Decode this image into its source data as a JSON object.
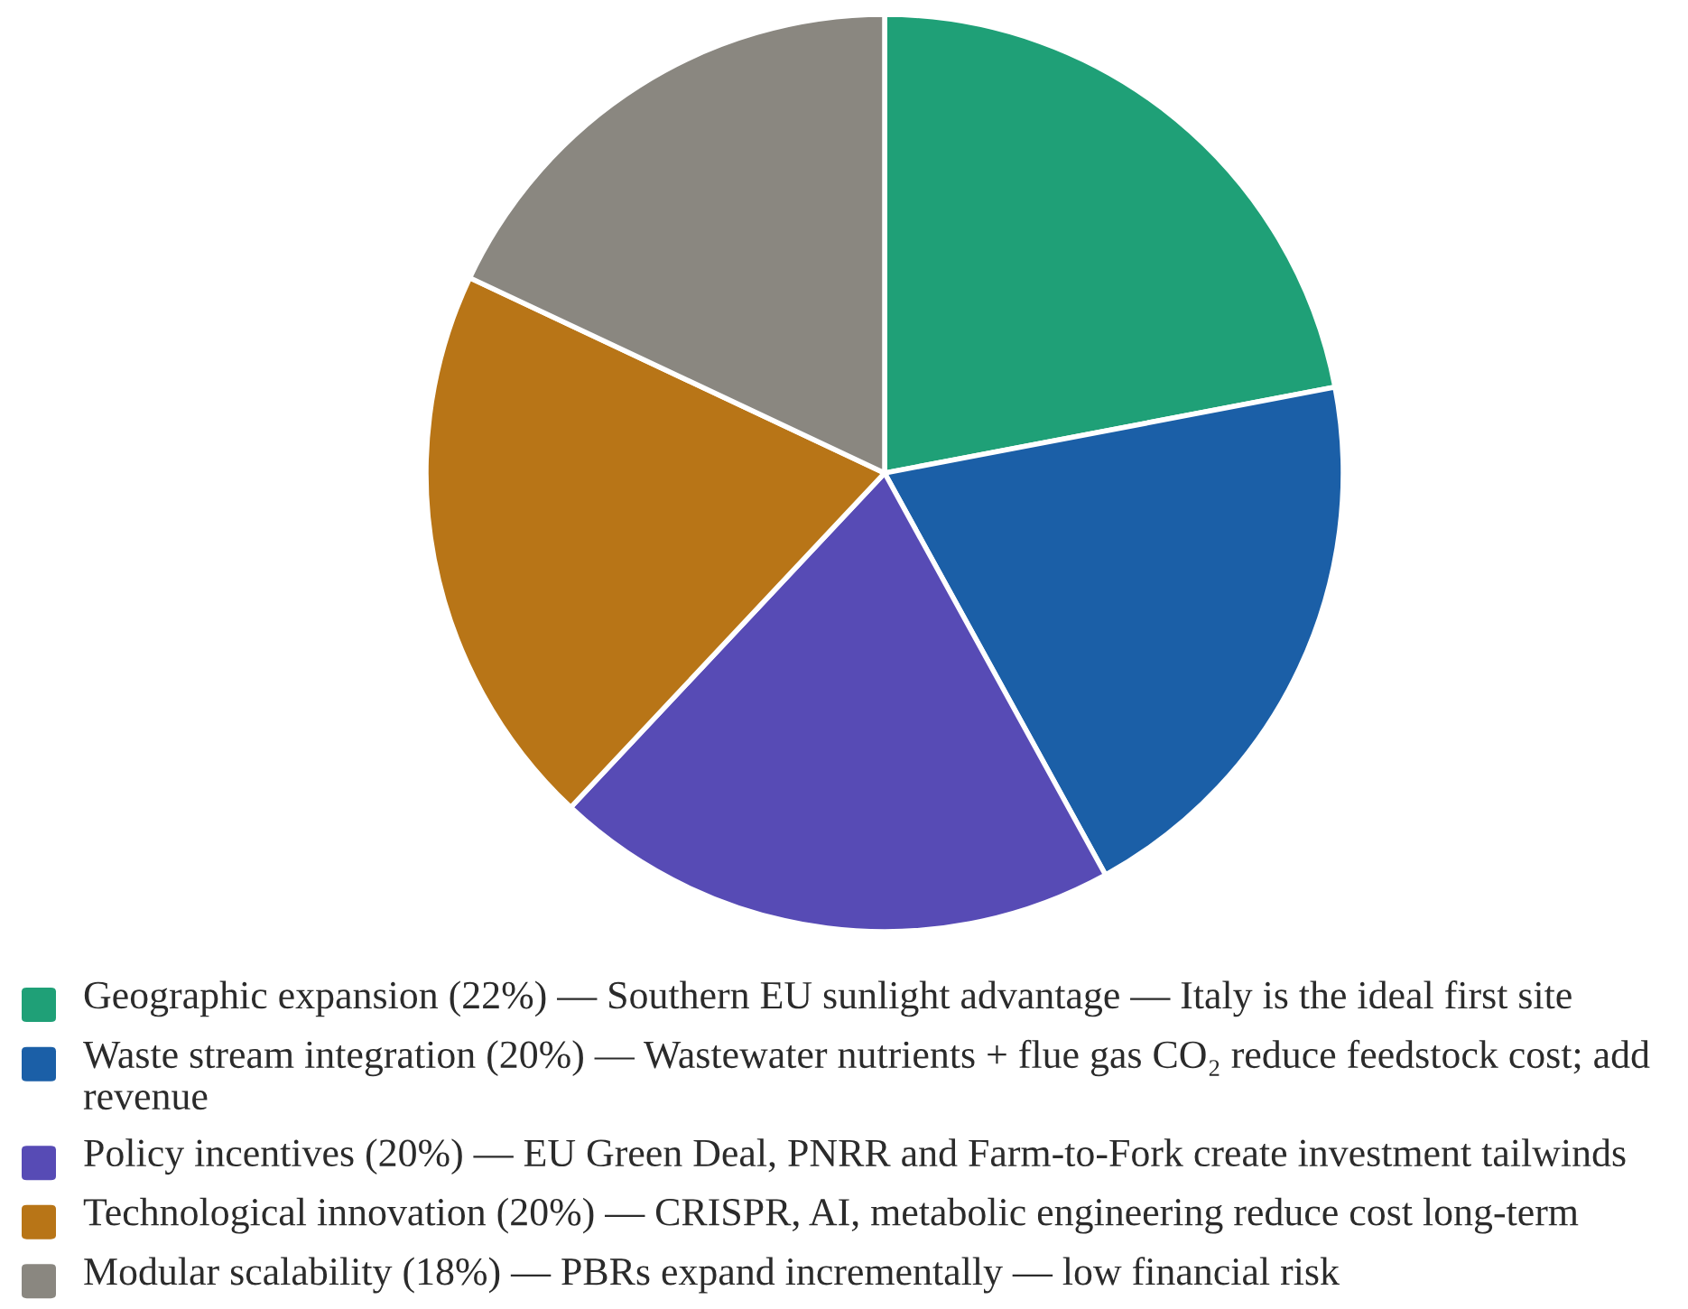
{
  "chart_data": {
    "type": "pie",
    "categories": [
      "Geographic expansion (22%) — Southern EU sunlight advantage — Italy is the ideal first site",
      "Waste stream integration (20%) — Wastewater nutrients + flue gas CO₂ reduce feedstock cost; add revenue",
      "Policy incentives (20%) — EU Green Deal, PNRR and Farm-to-Fork create investment tailwinds",
      "Technological innovation (20%) — CRISPR, AI, metabolic engineering reduce cost long-term",
      "Modular scalability (18%) — PBRs expand incrementally — low financial risk"
    ],
    "values": [
      22,
      20,
      20,
      20,
      18
    ],
    "colors": [
      "#1fa077",
      "#1b5fa7",
      "#574bb5",
      "#b87517",
      "#8a8780"
    ],
    "legend": "bottom"
  }
}
